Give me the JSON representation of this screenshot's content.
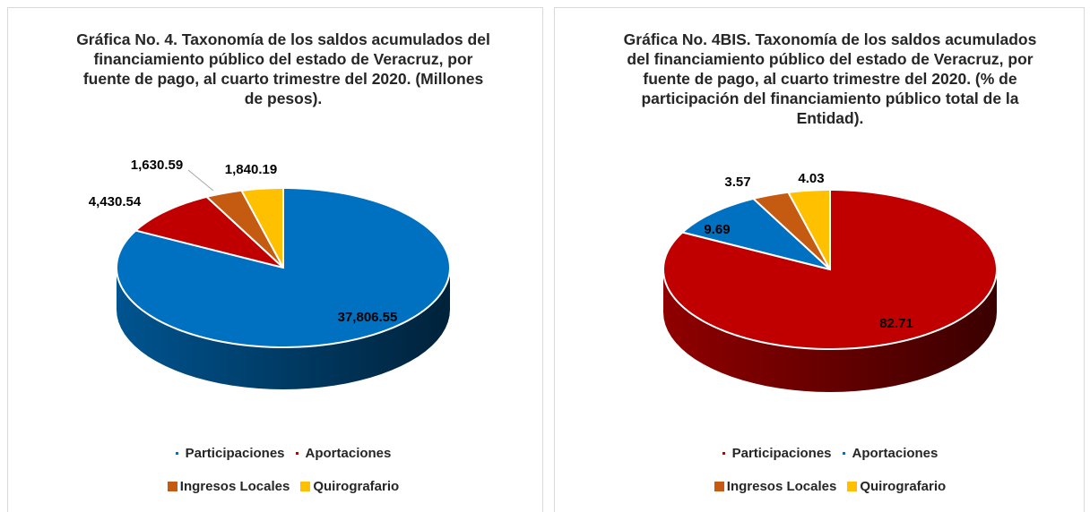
{
  "chart_data": [
    {
      "type": "pie",
      "title": "Gráfica No. 4. Taxonomía de los saldos acumulados del financiamiento público del estado de Veracruz, por fuente de pago, al cuarto trimestre del 2020. (Millones de pesos).",
      "categories": [
        "Participaciones",
        "Aportaciones",
        "Ingresos Locales",
        "Quirografario"
      ],
      "values": [
        37806.55,
        4430.54,
        1630.59,
        1840.19
      ],
      "value_labels": [
        "37,806.55",
        "4,430.54",
        "1,630.59",
        "1,840.19"
      ],
      "colors": [
        "#0070c0",
        "#c00000",
        "#c55a11",
        "#ffc000"
      ]
    },
    {
      "type": "pie",
      "title": "Gráfica No. 4BIS. Taxonomía de los saldos acumulados del financiamiento público del estado de Veracruz, por fuente de pago, al cuarto trimestre del 2020. (% de participación del financiamiento público total de la Entidad).",
      "categories": [
        "Participaciones",
        "Aportaciones",
        "Ingresos Locales",
        "Quirografario"
      ],
      "values": [
        82.71,
        9.69,
        3.57,
        4.03
      ],
      "colors": [
        "#c00000",
        "#0070c0",
        "#c55a11",
        "#ffc000"
      ]
    }
  ]
}
